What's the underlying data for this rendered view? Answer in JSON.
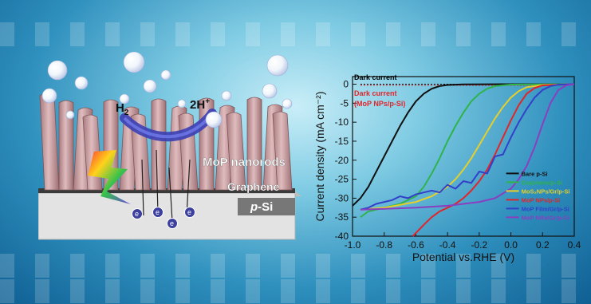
{
  "schematic": {
    "labels": {
      "h2": "H",
      "h2_sub": "2",
      "hplus": "2H",
      "hplus_sup": "+",
      "nanorods": "MoP nanorods",
      "graphene": "Graphene",
      "substrate_prefix": "p",
      "substrate_suffix": "-Si",
      "electron": "e",
      "electron_sup": "−"
    },
    "colors": {
      "rod": "#c9a3a6",
      "substrate": "#d8d8d8",
      "arc": "#3b3fb5"
    }
  },
  "chart_data": {
    "type": "line",
    "title": "",
    "xlabel": "Potential vs.RHE (V)",
    "ylabel": "Current density (mA cm⁻²)",
    "xlim": [
      -1.0,
      0.4
    ],
    "ylim": [
      -40,
      2
    ],
    "xticks": [
      "-1.0",
      "-0.8",
      "-0.6",
      "-0.4",
      "-0.2",
      "0.0",
      "0.2",
      "0.4"
    ],
    "yticks": [
      "0",
      "-5",
      "-10",
      "-15",
      "-20",
      "-25",
      "-30",
      "-35",
      "-40"
    ],
    "annotations": [
      {
        "text": "Dark current",
        "color": "#000000",
        "x": -0.99,
        "y": 1.2
      },
      {
        "text": "Dark current",
        "color": "#e0262a",
        "x": -0.99,
        "y": -3.0
      },
      {
        "text": "(MoP NPs/p-Si)",
        "color": "#e0262a",
        "x": -0.99,
        "y": -5.8
      }
    ],
    "dark_lines": [
      {
        "color": "#000000",
        "y": 0.0
      },
      {
        "color": "#e0262a",
        "y": -0.3
      }
    ],
    "series": [
      {
        "name": "Bare p-Si",
        "color": "#111111",
        "x": [
          -1.0,
          -0.95,
          -0.9,
          -0.85,
          -0.8,
          -0.75,
          -0.7,
          -0.65,
          -0.6,
          -0.55,
          -0.5,
          -0.45,
          -0.4,
          -0.3,
          0.0,
          0.4
        ],
        "y": [
          -32,
          -30,
          -27,
          -23,
          -19,
          -15,
          -11,
          -7.5,
          -4.5,
          -2.5,
          -1.2,
          -0.5,
          -0.2,
          -0.05,
          0,
          0
        ]
      },
      {
        "name": "Graphene/p-Si",
        "color": "#2fb34a",
        "x": [
          -0.95,
          -0.9,
          -0.85,
          -0.8,
          -0.7,
          -0.6,
          -0.55,
          -0.5,
          -0.45,
          -0.4,
          -0.35,
          -0.3,
          -0.25,
          -0.2,
          -0.15,
          -0.1,
          0.0,
          0.4
        ],
        "y": [
          -35,
          -33.5,
          -33,
          -32.5,
          -31.5,
          -29.5,
          -27,
          -23.5,
          -19.5,
          -15,
          -11,
          -7.5,
          -4.5,
          -2.5,
          -1.2,
          -0.5,
          -0.1,
          0
        ]
      },
      {
        "name": "MoS₂NPs/Gr/p-Si",
        "color": "#e6cf2a",
        "x": [
          -0.95,
          -0.8,
          -0.6,
          -0.5,
          -0.4,
          -0.35,
          -0.3,
          -0.25,
          -0.2,
          -0.15,
          -0.1,
          -0.05,
          0.0,
          0.05,
          0.1,
          0.2,
          0.4
        ],
        "y": [
          -33,
          -32.5,
          -31,
          -29.5,
          -27,
          -25,
          -22.5,
          -19.5,
          -16,
          -12.5,
          -9,
          -6,
          -3.5,
          -1.8,
          -0.8,
          -0.2,
          0
        ]
      },
      {
        "name": "MoP NPs/p-Si",
        "color": "#e0262a",
        "x": [
          -0.62,
          -0.55,
          -0.5,
          -0.45,
          -0.4,
          -0.35,
          -0.3,
          -0.25,
          -0.2,
          -0.15,
          -0.1,
          -0.05,
          0.0,
          0.05,
          0.1,
          0.15,
          0.2,
          0.4
        ],
        "y": [
          -40,
          -37,
          -35,
          -33.5,
          -32.5,
          -31.5,
          -30,
          -28,
          -25.5,
          -22.5,
          -18.5,
          -14,
          -9.5,
          -5.5,
          -2.5,
          -1,
          -0.3,
          0
        ]
      },
      {
        "name": "MoP Film/Gr/p-Si",
        "color": "#3340c8",
        "x": [
          -0.95,
          -0.9,
          -0.85,
          -0.8,
          -0.75,
          -0.7,
          -0.65,
          -0.6,
          -0.55,
          -0.5,
          -0.45,
          -0.4,
          -0.35,
          -0.3,
          -0.25,
          -0.2,
          -0.15,
          -0.1,
          -0.05,
          0.0,
          0.05,
          0.1,
          0.15,
          0.2,
          0.25,
          0.3,
          0.4
        ],
        "y": [
          -33,
          -32.5,
          -31.5,
          -31,
          -30.5,
          -29.5,
          -30,
          -29,
          -28.5,
          -28,
          -28.5,
          -26.5,
          -27.5,
          -25.5,
          -26,
          -23,
          -23.5,
          -19,
          -18.5,
          -14,
          -10,
          -6.5,
          -3.5,
          -1.5,
          -0.5,
          -0.1,
          0
        ]
      },
      {
        "name": "MoP NRs/Gr/p-Si",
        "color": "#8a3fc0",
        "x": [
          -0.95,
          -0.8,
          -0.6,
          -0.4,
          -0.2,
          -0.1,
          0.0,
          0.05,
          0.1,
          0.15,
          0.2,
          0.25,
          0.3,
          0.35,
          0.4
        ],
        "y": [
          -33,
          -32.8,
          -32.5,
          -32,
          -31,
          -30,
          -27.5,
          -25,
          -21.5,
          -16.5,
          -10.5,
          -5,
          -1.5,
          -0.3,
          0
        ]
      }
    ]
  }
}
